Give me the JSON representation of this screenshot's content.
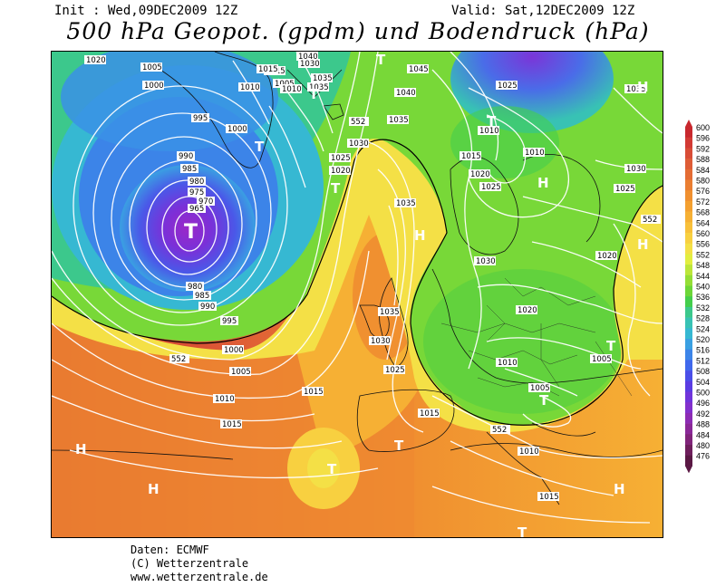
{
  "header": {
    "init": "Init : Wed,09DEC2009 12Z",
    "valid": "Valid: Sat,12DEC2009 12Z",
    "title": "500 hPa Geopot. (gpdm) und Bodendruck (hPa)"
  },
  "credits": {
    "line1": "Daten: ECMWF",
    "line2": "(C) Wetterzentrale",
    "line3": "www.wetterzentrale.de"
  },
  "legend": {
    "levels": [
      "600",
      "596",
      "592",
      "588",
      "584",
      "580",
      "576",
      "572",
      "568",
      "564",
      "560",
      "556",
      "552",
      "548",
      "544",
      "540",
      "536",
      "532",
      "528",
      "524",
      "520",
      "516",
      "512",
      "508",
      "504",
      "500",
      "496",
      "492",
      "488",
      "484",
      "480",
      "476"
    ],
    "colors": {
      "600": "#c8282e",
      "596": "#d23a34",
      "592": "#d84c36",
      "588": "#de5c36",
      "584": "#e46c34",
      "580": "#ea7e32",
      "576": "#f09030",
      "572": "#f4a030",
      "568": "#f6b034",
      "564": "#f8c03a",
      "560": "#f8d040",
      "556": "#f4e046",
      "552": "#e2ee40",
      "548": "#bce63a",
      "544": "#94de36",
      "540": "#6cd638",
      "536": "#44ce4c",
      "532": "#3cc88c",
      "528": "#38c2b4",
      "524": "#36b8d2",
      "520": "#3aa0e2",
      "516": "#3c84e8",
      "512": "#4068ec",
      "508": "#4a4ee8",
      "504": "#5a3ce2",
      "500": "#7034da",
      "496": "#8230cc",
      "492": "#8c2cb4",
      "488": "#8a2898",
      "484": "#80247a",
      "480": "#6e1e5c",
      "476": "#5a1844"
    }
  },
  "map": {
    "pressure_labels": [
      "1020",
      "1005",
      "1000",
      "995",
      "990",
      "985",
      "980",
      "975",
      "970",
      "965",
      "980",
      "985",
      "990",
      "995",
      "1000",
      "1005",
      "1010",
      "1015",
      "1010",
      "1015",
      "1000",
      "1005",
      "1010",
      "1015",
      "1040",
      "1030",
      "1035",
      "1035",
      "1025",
      "1020",
      "1030",
      "1035",
      "1040",
      "1045",
      "1025",
      "1035",
      "1010",
      "1015",
      "1020",
      "1025",
      "1035",
      "1030",
      "1025",
      "1010",
      "1030",
      "1020",
      "1035",
      "1030",
      "1025",
      "1020",
      "1010",
      "1005",
      "1015",
      "1005",
      "1015",
      "1010",
      "1015",
      "552",
      "552",
      "552",
      "552"
    ],
    "pressure_centers": [
      "T",
      "T",
      "T",
      "T",
      "T",
      "T",
      "T",
      "T",
      "T",
      "T",
      "H",
      "H",
      "H",
      "H",
      "H",
      "H",
      "H",
      "T"
    ]
  }
}
